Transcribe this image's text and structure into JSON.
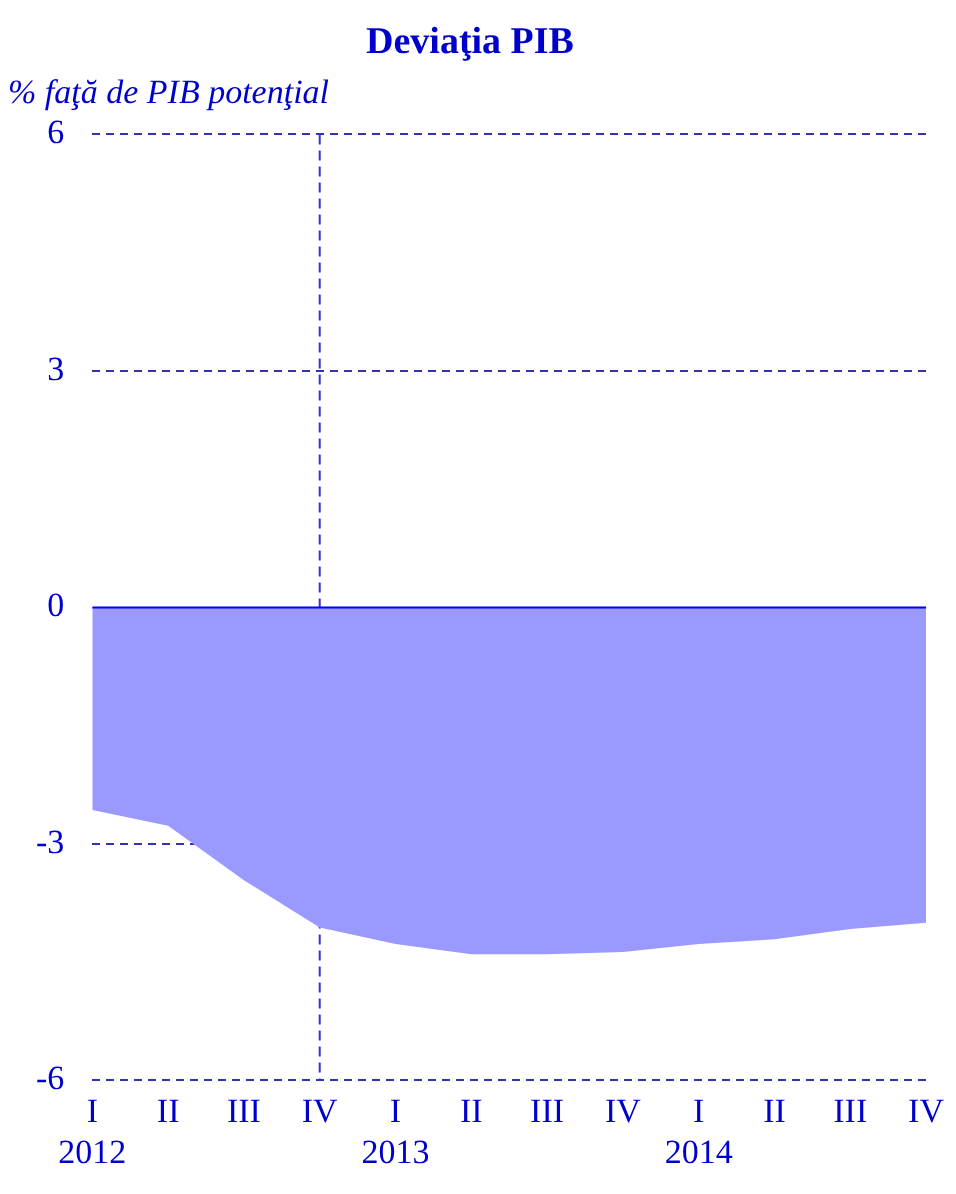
{
  "chart_data": {
    "type": "area",
    "title": "Deviaţia PIB",
    "subtitle": "% faţă de PIB potenţial",
    "categories": [
      "I\n2012",
      "II",
      "III",
      "IV",
      "I\n2013",
      "II",
      "III",
      "IV",
      "I\n2014",
      "II",
      "III",
      "IV"
    ],
    "series": [
      {
        "color": "#9999ff",
        "values": [
          -2.57,
          -2.77,
          -3.46,
          -4.06,
          -4.27,
          -4.4,
          -4.4,
          -4.37,
          -4.27,
          -4.21,
          -4.08,
          -4.0
        ]
      }
    ],
    "ylim": [
      -6,
      6
    ],
    "yticks": [
      -6,
      -3,
      0,
      3,
      6
    ],
    "grid": "y",
    "legend": false,
    "ref_lines": [
      {
        "axis": "y",
        "value": 0,
        "color": "#0000ff",
        "line_style": "solid"
      },
      {
        "axis": "x",
        "value": "IV",
        "color": "#3333cc",
        "line_style": "dashed"
      }
    ]
  }
}
